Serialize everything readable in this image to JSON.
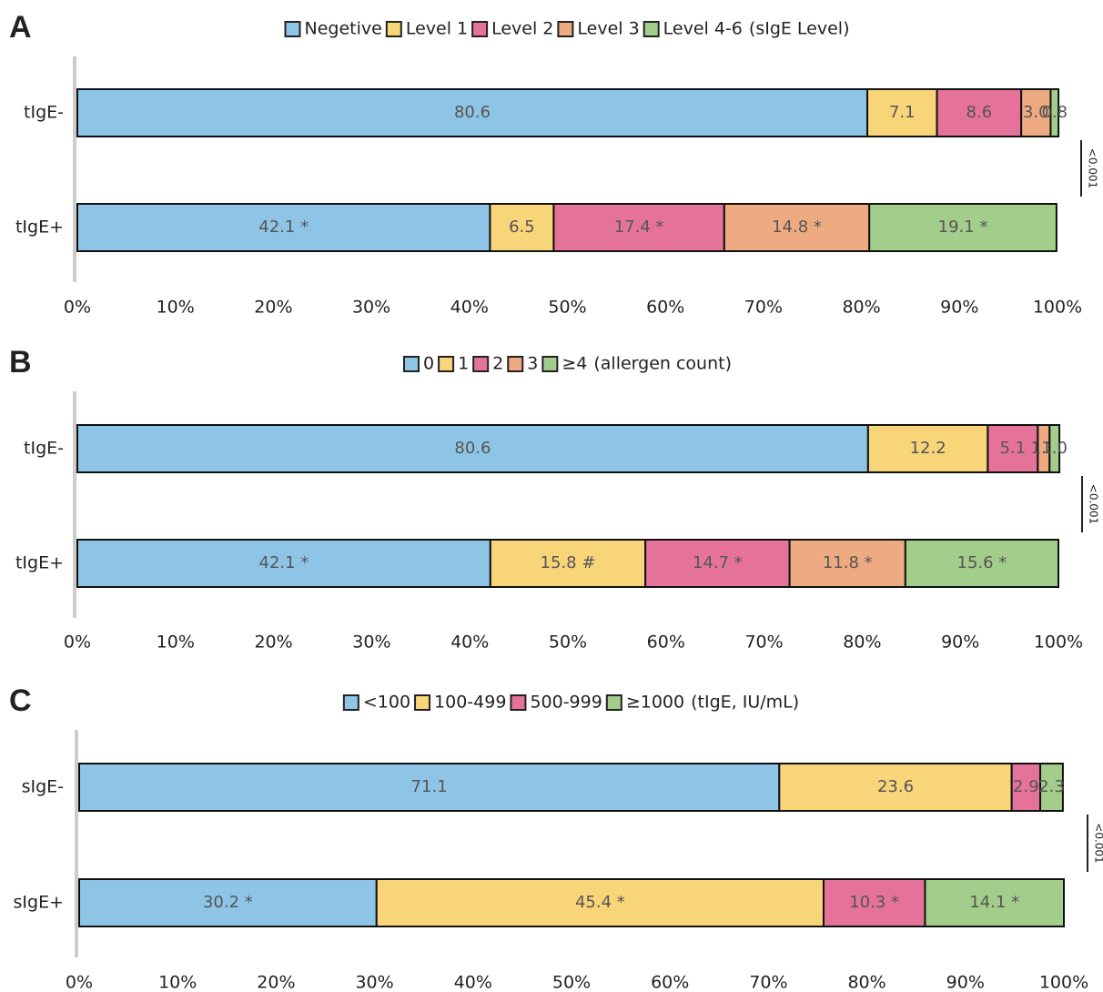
{
  "chart_data": [
    {
      "type": "bar",
      "orientation": "horizontal",
      "stacked": true,
      "panel_label": "A",
      "legend_title": "(sIgE Level)",
      "annotation": "<0.001",
      "categories": [
        "tIgE-",
        "tIgE+"
      ],
      "series": [
        {
          "name": "Negetive",
          "color": "#8ec4e6",
          "values": [
            80.6,
            42.1
          ],
          "value_labels": [
            "80.6",
            "42.1 *"
          ]
        },
        {
          "name": "Level 1",
          "color": "#f9d57a",
          "values": [
            7.1,
            6.5
          ]
        },
        {
          "name": "Level 2",
          "color": "#e57399",
          "values": [
            8.6,
            17.4
          ],
          "value_labels": [
            "8.6",
            "17.4 *"
          ]
        },
        {
          "name": "Level 3",
          "color": "#eeaa80",
          "values": [
            3.0,
            14.8
          ],
          "value_labels": [
            "3.0",
            "14.8 *"
          ]
        },
        {
          "name": "Level 4-6",
          "color": "#a3cd8a",
          "values": [
            0.8,
            19.1
          ],
          "value_labels": [
            "0.8",
            "19.1 *"
          ]
        }
      ],
      "xlim": [
        0,
        100
      ],
      "xticks": [
        {
          "value": 0,
          "label": "0%"
        },
        {
          "value": 10,
          "label": "10%"
        },
        {
          "value": 20,
          "label": "20%"
        },
        {
          "value": 30,
          "label": "30%"
        },
        {
          "value": 40,
          "label": "40%"
        },
        {
          "value": 50,
          "label": "50%"
        },
        {
          "value": 60,
          "label": "60%"
        },
        {
          "value": 70,
          "label": "70%"
        },
        {
          "value": 80,
          "label": "80%"
        },
        {
          "value": 90,
          "label": "90%"
        },
        {
          "value": 100,
          "label": "100%"
        }
      ]
    },
    {
      "type": "bar",
      "orientation": "horizontal",
      "stacked": true,
      "panel_label": "B",
      "legend_title": "(allergen count)",
      "annotation": "<0.001",
      "categories": [
        "tIgE-",
        "tIgE+"
      ],
      "series": [
        {
          "name": "0",
          "color": "#8ec4e6",
          "values": [
            80.6,
            42.1
          ],
          "value_labels": [
            "80.6",
            "42.1 *"
          ]
        },
        {
          "name": "1",
          "color": "#f9d57a",
          "values": [
            12.2,
            15.8
          ],
          "value_labels": [
            "12.2",
            "15.8 #"
          ]
        },
        {
          "name": "2",
          "color": "#e57399",
          "values": [
            5.1,
            14.7
          ],
          "value_labels": [
            "5.1",
            "14.7 *"
          ]
        },
        {
          "name": "3",
          "color": "#eeaa80",
          "values": [
            1.2,
            11.8
          ],
          "value_labels": [
            "1.2",
            "11.8 *"
          ]
        },
        {
          "name": "≥4",
          "color": "#a3cd8a",
          "values": [
            1.0,
            15.6
          ],
          "value_labels": [
            "1.0",
            "15.6 *"
          ]
        }
      ],
      "xlim": [
        0,
        100
      ],
      "xticks": [
        {
          "value": 0,
          "label": "0%"
        },
        {
          "value": 10,
          "label": "10%"
        },
        {
          "value": 20,
          "label": "20%"
        },
        {
          "value": 30,
          "label": "30%"
        },
        {
          "value": 40,
          "label": "40%"
        },
        {
          "value": 50,
          "label": "50%"
        },
        {
          "value": 60,
          "label": "60%"
        },
        {
          "value": 70,
          "label": "70%"
        },
        {
          "value": 80,
          "label": "80%"
        },
        {
          "value": 90,
          "label": "90%"
        },
        {
          "value": 100,
          "label": "100%"
        }
      ]
    },
    {
      "type": "bar",
      "orientation": "horizontal",
      "stacked": true,
      "panel_label": "C",
      "legend_title": "(tIgE, IU/mL)",
      "annotation": "<0.001",
      "categories": [
        "sIgE-",
        "sIgE+"
      ],
      "series": [
        {
          "name": "<100",
          "color": "#8ec4e6",
          "values": [
            71.1,
            30.2
          ],
          "value_labels": [
            "71.1",
            "30.2 *"
          ]
        },
        {
          "name": "100-499",
          "color": "#f9d57a",
          "values": [
            23.6,
            45.4
          ],
          "value_labels": [
            "23.6",
            "45.4 *"
          ]
        },
        {
          "name": "500-999",
          "color": "#e57399",
          "values": [
            2.9,
            10.3
          ],
          "value_labels": [
            "2.9",
            "10.3 *"
          ]
        },
        {
          "name": "≥1000",
          "color": "#a3cd8a",
          "values": [
            2.3,
            14.1
          ],
          "value_labels": [
            "2.3",
            "14.1 *"
          ]
        }
      ],
      "xlim": [
        0,
        100
      ],
      "xticks": [
        {
          "value": 0,
          "label": "0%"
        },
        {
          "value": 10,
          "label": "10%"
        },
        {
          "value": 20,
          "label": "20%"
        },
        {
          "value": 30,
          "label": "30%"
        },
        {
          "value": 40,
          "label": "40%"
        },
        {
          "value": 50,
          "label": "50%"
        },
        {
          "value": 60,
          "label": "60%"
        },
        {
          "value": 70,
          "label": "70%"
        },
        {
          "value": 80,
          "label": "80%"
        },
        {
          "value": 90,
          "label": "90%"
        },
        {
          "value": 100,
          "label": "100%"
        }
      ]
    }
  ]
}
